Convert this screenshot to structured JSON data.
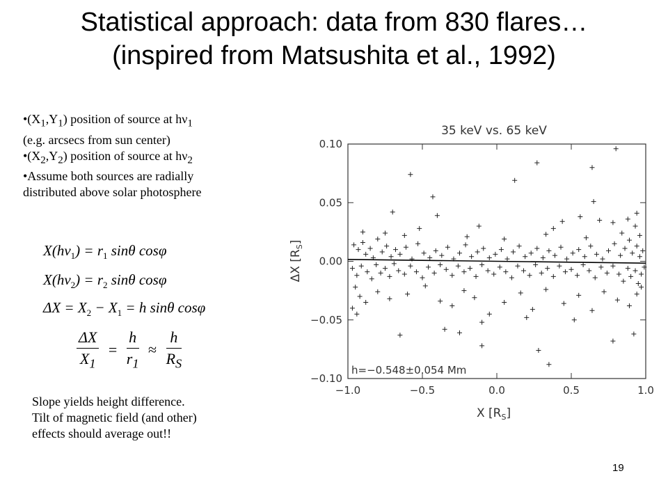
{
  "slide": {
    "title_line1": "Statistical approach: data from 830 flares…",
    "title_line2": "(inspired from Matsushita et al., 1992)",
    "page_number": "19"
  },
  "bullets": [
    {
      "pre": "•(X",
      "s1": "1",
      "mid": ",Y",
      "s2": "1",
      "post": ") position of source at hν",
      "s3": "1"
    },
    {
      "text": "(e.g. arcsecs from sun center)"
    },
    {
      "pre": "•(X",
      "s1": "2",
      "mid": ",Y",
      "s2": "2",
      "post": ") position of source at hν",
      "s3": "2"
    },
    {
      "text": "•Assume both sources are radially"
    },
    {
      "text": "distributed above solar photosphere"
    }
  ],
  "equations": {
    "eq1_lhs": "X(hν",
    "eq1_lsub": "1",
    "eq1_mid": ") = r",
    "eq1_rsub": "1",
    "eq1_rhs": " sinθ cosφ",
    "eq2_lhs": "X(hν",
    "eq2_lsub": "2",
    "eq2_mid": ") = r",
    "eq2_rsub": "2",
    "eq2_rhs": " sinθ cosφ",
    "eq3": "ΔX = X",
    "eq3_s1": "2",
    "eq3_m": " − X",
    "eq3_s2": "1",
    "eq3_r": " = h sinθ cosφ",
    "frac1_num": "ΔX",
    "frac1_den": "X",
    "frac1_den_sub": "1",
    "eq_sign": "=",
    "frac2_num": "h",
    "frac2_den": "r",
    "frac2_den_sub": "1",
    "approx_sign": "≈",
    "frac3_num": "h",
    "frac3_den": "R",
    "frac3_den_sub": "S"
  },
  "note": {
    "line1": "Slope yields height difference.",
    "line2": "Tilt of magnetic field (and other)",
    "line3": "effects should average out!!"
  },
  "chart_data": {
    "type": "scatter",
    "title": "35 keV vs. 65 keV",
    "xlabel": "X [R_S]",
    "ylabel": "ΔX [R_S]",
    "xlim": [
      -1.0,
      1.0
    ],
    "ylim": [
      -0.1,
      0.1
    ],
    "x_tick_labels": [
      "−1.0",
      "−0.5",
      "0.0",
      "0.5",
      "1.0"
    ],
    "x_ticks": [
      -1.0,
      -0.5,
      0.0,
      0.5,
      1.0
    ],
    "y_tick_labels": [
      "−0.10",
      "−0.05",
      "0.00",
      "0.05",
      "0.10"
    ],
    "y_ticks": [
      -0.1,
      -0.05,
      0.0,
      0.05,
      0.1
    ],
    "marker": "+",
    "annotation": "h=−0.548±0.054 Mm",
    "fit_line": {
      "x": [
        -1.0,
        1.0
      ],
      "y": [
        0.0016,
        -0.0016
      ]
    },
    "points": [
      [
        0.8,
        0.096
      ],
      [
        0.27,
        0.084
      ],
      [
        0.64,
        0.08
      ],
      [
        -0.58,
        0.074
      ],
      [
        0.12,
        0.069
      ],
      [
        -0.43,
        0.055
      ],
      [
        0.65,
        0.051
      ],
      [
        -0.7,
        0.042
      ],
      [
        0.94,
        0.041
      ],
      [
        0.56,
        0.038
      ],
      [
        0.88,
        0.036
      ],
      [
        -0.4,
        0.039
      ],
      [
        0.44,
        0.034
      ],
      [
        0.69,
        0.035
      ],
      [
        -0.52,
        0.028
      ],
      [
        0.93,
        0.03
      ],
      [
        0.38,
        0.028
      ],
      [
        -0.12,
        0.03
      ],
      [
        0.78,
        0.033
      ],
      [
        -0.96,
        0.014
      ],
      [
        -0.93,
        0.01
      ],
      [
        -0.9,
        0.016
      ],
      [
        -0.88,
        0.006
      ],
      [
        -0.85,
        0.011
      ],
      [
        -0.83,
        0.003
      ],
      [
        -0.8,
        0.019
      ],
      [
        -0.77,
        0.008
      ],
      [
        -0.74,
        0.013
      ],
      [
        -0.71,
        0.004
      ],
      [
        -0.68,
        0.01
      ],
      [
        -0.65,
        0.006
      ],
      [
        -0.61,
        0.012
      ],
      [
        -0.57,
        0.002
      ],
      [
        -0.53,
        0.015
      ],
      [
        -0.49,
        0.007
      ],
      [
        -0.45,
        0.003
      ],
      [
        -0.41,
        0.009
      ],
      [
        -0.37,
        0.005
      ],
      [
        -0.33,
        0.012
      ],
      [
        -0.29,
        0.002
      ],
      [
        -0.25,
        0.007
      ],
      [
        -0.21,
        0.014
      ],
      [
        -0.17,
        0.004
      ],
      [
        -0.13,
        0.008
      ],
      [
        -0.09,
        0.011
      ],
      [
        -0.05,
        0.003
      ],
      [
        -0.01,
        0.006
      ],
      [
        0.03,
        0.01
      ],
      [
        0.07,
        0.002
      ],
      [
        0.11,
        0.008
      ],
      [
        0.15,
        0.013
      ],
      [
        0.19,
        0.004
      ],
      [
        0.23,
        0.007
      ],
      [
        0.27,
        0.011
      ],
      [
        0.31,
        0.003
      ],
      [
        0.35,
        0.009
      ],
      [
        0.39,
        0.005
      ],
      [
        0.43,
        0.012
      ],
      [
        0.47,
        0.002
      ],
      [
        0.51,
        0.007
      ],
      [
        0.55,
        0.01
      ],
      [
        0.59,
        0.004
      ],
      [
        0.63,
        0.013
      ],
      [
        0.67,
        0.006
      ],
      [
        0.71,
        0.002
      ],
      [
        0.75,
        0.009
      ],
      [
        0.79,
        0.015
      ],
      [
        0.83,
        0.005
      ],
      [
        0.86,
        0.011
      ],
      [
        0.89,
        0.018
      ],
      [
        0.91,
        0.007
      ],
      [
        0.94,
        0.013
      ],
      [
        0.96,
        0.004
      ],
      [
        0.98,
        0.009
      ],
      [
        -0.97,
        -0.006
      ],
      [
        -0.94,
        -0.012
      ],
      [
        -0.91,
        -0.004
      ],
      [
        -0.87,
        -0.009
      ],
      [
        -0.84,
        -0.015
      ],
      [
        -0.81,
        -0.003
      ],
      [
        -0.78,
        -0.01
      ],
      [
        -0.75,
        -0.006
      ],
      [
        -0.72,
        -0.013
      ],
      [
        -0.69,
        -0.002
      ],
      [
        -0.66,
        -0.008
      ],
      [
        -0.62,
        -0.011
      ],
      [
        -0.58,
        -0.004
      ],
      [
        -0.54,
        -0.009
      ],
      [
        -0.5,
        -0.014
      ],
      [
        -0.46,
        -0.005
      ],
      [
        -0.42,
        -0.01
      ],
      [
        -0.38,
        -0.003
      ],
      [
        -0.34,
        -0.007
      ],
      [
        -0.3,
        -0.012
      ],
      [
        -0.26,
        -0.004
      ],
      [
        -0.22,
        -0.009
      ],
      [
        -0.18,
        -0.006
      ],
      [
        -0.14,
        -0.013
      ],
      [
        -0.1,
        -0.003
      ],
      [
        -0.06,
        -0.008
      ],
      [
        -0.02,
        -0.011
      ],
      [
        0.02,
        -0.005
      ],
      [
        0.06,
        -0.009
      ],
      [
        0.1,
        -0.014
      ],
      [
        0.14,
        -0.004
      ],
      [
        0.18,
        -0.008
      ],
      [
        0.22,
        -0.012
      ],
      [
        0.26,
        -0.003
      ],
      [
        0.3,
        -0.01
      ],
      [
        0.34,
        -0.006
      ],
      [
        0.38,
        -0.013
      ],
      [
        0.42,
        -0.004
      ],
      [
        0.46,
        -0.009
      ],
      [
        0.5,
        -0.007
      ],
      [
        0.54,
        -0.012
      ],
      [
        0.58,
        -0.003
      ],
      [
        0.62,
        -0.008
      ],
      [
        0.66,
        -0.014
      ],
      [
        0.7,
        -0.005
      ],
      [
        0.74,
        -0.01
      ],
      [
        0.78,
        -0.004
      ],
      [
        0.82,
        -0.011
      ],
      [
        0.85,
        -0.017
      ],
      [
        0.88,
        -0.006
      ],
      [
        0.9,
        -0.013
      ],
      [
        0.93,
        -0.008
      ],
      [
        0.95,
        -0.019
      ],
      [
        0.97,
        -0.011
      ],
      [
        0.99,
        -0.005
      ],
      [
        -0.95,
        -0.022
      ],
      [
        -0.92,
        -0.03
      ],
      [
        -0.88,
        -0.035
      ],
      [
        -0.8,
        -0.026
      ],
      [
        -0.72,
        -0.032
      ],
      [
        -0.6,
        -0.028
      ],
      [
        -0.48,
        -0.021
      ],
      [
        -0.38,
        -0.034
      ],
      [
        -0.3,
        -0.038
      ],
      [
        -0.22,
        -0.025
      ],
      [
        -0.15,
        -0.031
      ],
      [
        -0.05,
        -0.045
      ],
      [
        0.05,
        -0.035
      ],
      [
        0.16,
        -0.027
      ],
      [
        0.24,
        -0.041
      ],
      [
        0.33,
        -0.024
      ],
      [
        0.45,
        -0.036
      ],
      [
        0.55,
        -0.029
      ],
      [
        0.64,
        -0.042
      ],
      [
        0.72,
        -0.026
      ],
      [
        0.81,
        -0.033
      ],
      [
        0.89,
        -0.038
      ],
      [
        0.94,
        -0.028
      ],
      [
        0.97,
        -0.022
      ],
      [
        -0.97,
        -0.04
      ],
      [
        -0.94,
        -0.045
      ],
      [
        -0.65,
        -0.063
      ],
      [
        -0.35,
        -0.058
      ],
      [
        -0.1,
        -0.052
      ],
      [
        0.2,
        -0.048
      ],
      [
        0.52,
        -0.05
      ],
      [
        0.92,
        -0.062
      ],
      [
        0.78,
        -0.068
      ],
      [
        -0.25,
        -0.061
      ],
      [
        0.28,
        -0.076
      ],
      [
        -0.1,
        -0.072
      ],
      [
        0.35,
        -0.088
      ],
      [
        -0.9,
        0.025
      ],
      [
        -0.75,
        0.024
      ],
      [
        -0.62,
        0.022
      ],
      [
        -0.2,
        0.021
      ],
      [
        0.05,
        0.019
      ],
      [
        0.33,
        0.023
      ],
      [
        0.6,
        0.02
      ],
      [
        0.84,
        0.024
      ],
      [
        0.96,
        0.022
      ]
    ]
  }
}
